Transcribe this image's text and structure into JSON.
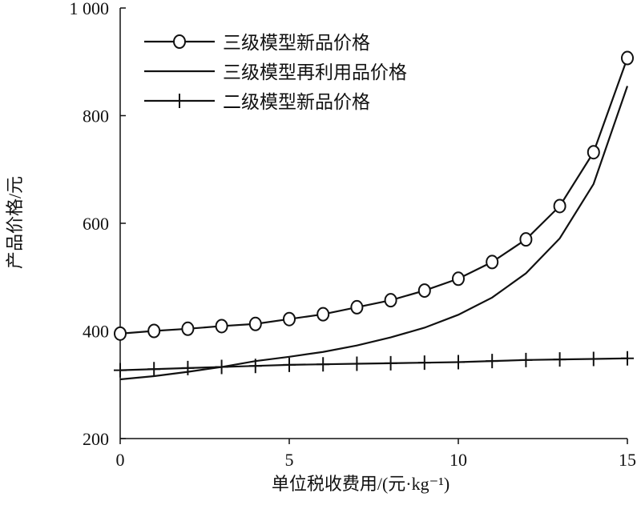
{
  "chart_data": {
    "type": "line",
    "title": "",
    "xlabel": "单位税收费用/(元·kg⁻¹)",
    "ylabel": "产品价格/元",
    "xlim": [
      0,
      15
    ],
    "ylim": [
      200,
      1000
    ],
    "xticks": [
      0,
      5,
      10,
      15
    ],
    "xtick_labels": [
      "0",
      "5",
      "10",
      "15"
    ],
    "yticks": [
      200,
      400,
      600,
      800,
      1000
    ],
    "ytick_labels": [
      "200",
      "400",
      "600",
      "800",
      "1 000"
    ],
    "grid": false,
    "legend_position": "top-left",
    "x": [
      0,
      1,
      2,
      3,
      4,
      5,
      6,
      7,
      8,
      9,
      10,
      11,
      12,
      13,
      14,
      15
    ],
    "series": [
      {
        "name": "三级模型新品价格",
        "marker": "circle",
        "values": [
          395,
          400,
          404,
          409,
          413,
          422,
          431,
          444,
          457,
          475,
          497,
          528,
          570,
          632,
          732,
          907
        ]
      },
      {
        "name": "三级模型再利用品价格",
        "marker": "none",
        "values": [
          310,
          316,
          324,
          333,
          344,
          352,
          361,
          373,
          388,
          406,
          430,
          462,
          507,
          572,
          673,
          855
        ]
      },
      {
        "name": "二级模型新品价格",
        "marker": "plus",
        "values": [
          327,
          329,
          331,
          333,
          335,
          337,
          338,
          339,
          340,
          341,
          342,
          344,
          346,
          347,
          348,
          349
        ]
      }
    ]
  }
}
